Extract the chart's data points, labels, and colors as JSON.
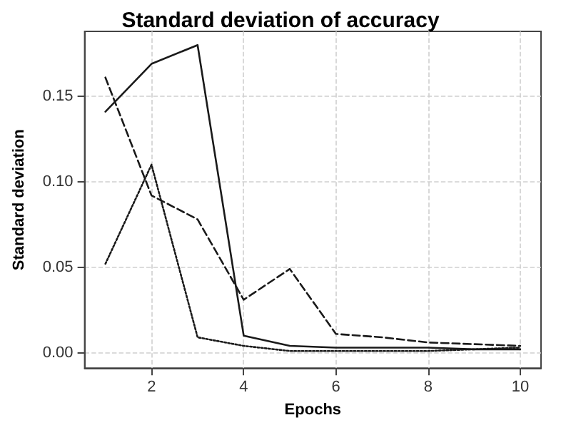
{
  "chart_data": {
    "type": "line",
    "title": "Standard deviation of accuracy",
    "xlabel": "Epochs",
    "ylabel": "Standard deviation",
    "x": [
      1,
      2,
      3,
      4,
      5,
      6,
      7,
      8,
      9,
      10
    ],
    "series": [
      {
        "color": "#1a1a1a",
        "line_style": "solid",
        "values": [
          0.141,
          0.169,
          0.18,
          0.01,
          0.004,
          0.003,
          0.003,
          0.003,
          0.002,
          0.002
        ]
      },
      {
        "color": "#1a1a1a",
        "line_style": "dashed",
        "values": [
          0.161,
          0.092,
          0.078,
          0.031,
          0.049,
          0.011,
          0.009,
          0.006,
          0.005,
          0.004
        ]
      },
      {
        "color": "#1a1a1a",
        "line_style": "dotted",
        "values": [
          0.052,
          0.11,
          0.009,
          0.004,
          0.001,
          0.001,
          0.001,
          0.001,
          0.002,
          0.003
        ]
      }
    ],
    "xlim": [
      0.55,
      10.45
    ],
    "xticks": [
      2,
      4,
      6,
      8,
      10
    ],
    "ylim": [
      -0.009,
      0.188
    ],
    "yticks": [
      {
        "value": 0,
        "label": "0.00"
      },
      {
        "value": 0.05,
        "label": "0.05"
      },
      {
        "value": 0.1,
        "label": "0.10"
      },
      {
        "value": 0.15,
        "label": "0.15"
      }
    ],
    "grid": true,
    "marker": "none"
  }
}
